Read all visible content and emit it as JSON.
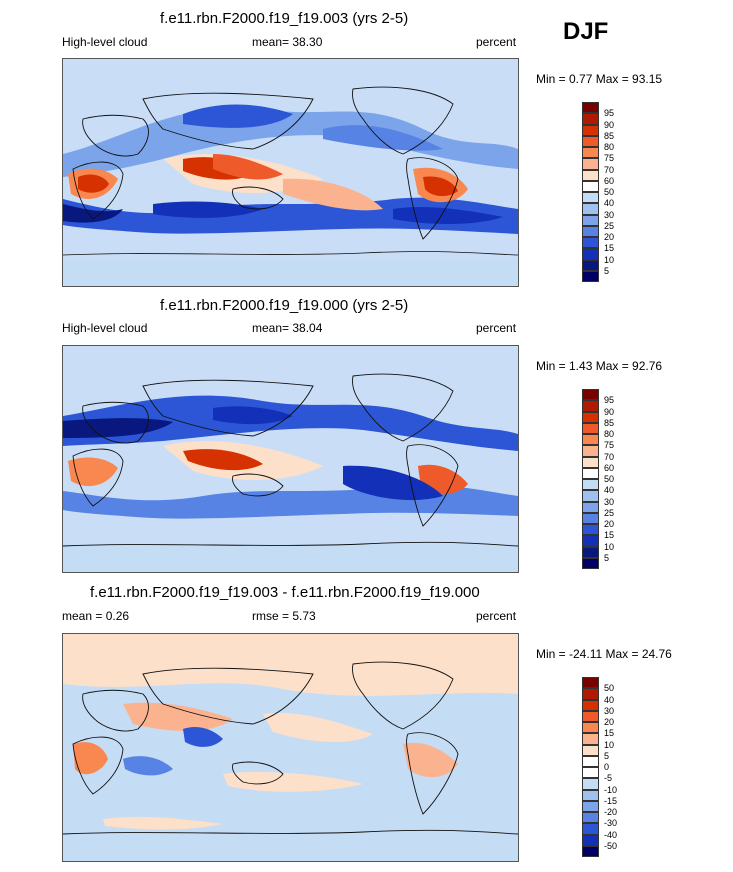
{
  "season": "DJF",
  "colors": {
    "background": "#ffffff",
    "land_outline": "#111111",
    "ocean_base": "#c9def6"
  },
  "panels": [
    {
      "title": "f.e11.rbn.F2000.f19_f19.003 (yrs 2-5)",
      "left_label": "High-level cloud",
      "center_label": "mean=  38.30",
      "right_label": "percent",
      "range_label": "Min =   0.77 Max =  93.15",
      "colorbar_ticks": [
        "95",
        "90",
        "85",
        "80",
        "75",
        "70",
        "60",
        "50",
        "40",
        "30",
        "25",
        "20",
        "15",
        "10",
        "5"
      ],
      "colorbar_colors": [
        "#7a0000",
        "#b01a00",
        "#d63100",
        "#ee5a2a",
        "#f8884f",
        "#fbb38f",
        "#fde0c9",
        "#ffffff",
        "#c5dcf5",
        "#9ec1ef",
        "#7ba4ea",
        "#5683e4",
        "#2c56d6",
        "#1230b8",
        "#08187f",
        "#000066"
      ]
    },
    {
      "title": "f.e11.rbn.F2000.f19_f19.000 (yrs 2-5)",
      "left_label": "High-level cloud",
      "center_label": "mean=  38.04",
      "right_label": "percent",
      "range_label": "Min =   1.43 Max =  92.76",
      "colorbar_ticks": [
        "95",
        "90",
        "85",
        "80",
        "75",
        "70",
        "60",
        "50",
        "40",
        "30",
        "25",
        "20",
        "15",
        "10",
        "5"
      ],
      "colorbar_colors": [
        "#7a0000",
        "#b01a00",
        "#d63100",
        "#ee5a2a",
        "#f8884f",
        "#fbb38f",
        "#fde0c9",
        "#ffffff",
        "#c5dcf5",
        "#9ec1ef",
        "#7ba4ea",
        "#5683e4",
        "#2c56d6",
        "#1230b8",
        "#08187f",
        "#000066"
      ]
    },
    {
      "title": "f.e11.rbn.F2000.f19_f19.003 - f.e11.rbn.F2000.f19_f19.000",
      "left_label": "mean =   0.26",
      "center_label": "rmse =   5.73",
      "right_label": "percent",
      "range_label": "Min = -24.11 Max =  24.76",
      "colorbar_ticks": [
        "50",
        "40",
        "30",
        "20",
        "15",
        "10",
        "5",
        "0",
        "-5",
        "-10",
        "-15",
        "-20",
        "-30",
        "-40",
        "-50"
      ],
      "colorbar_colors": [
        "#7a0000",
        "#b01a00",
        "#d63100",
        "#ee5a2a",
        "#f8884f",
        "#fbb38f",
        "#fde0c9",
        "#ffffff",
        "#ffffff",
        "#c5dcf5",
        "#9ec1ef",
        "#7ba4ea",
        "#5683e4",
        "#2c56d6",
        "#1230b8",
        "#000066"
      ]
    }
  ]
}
